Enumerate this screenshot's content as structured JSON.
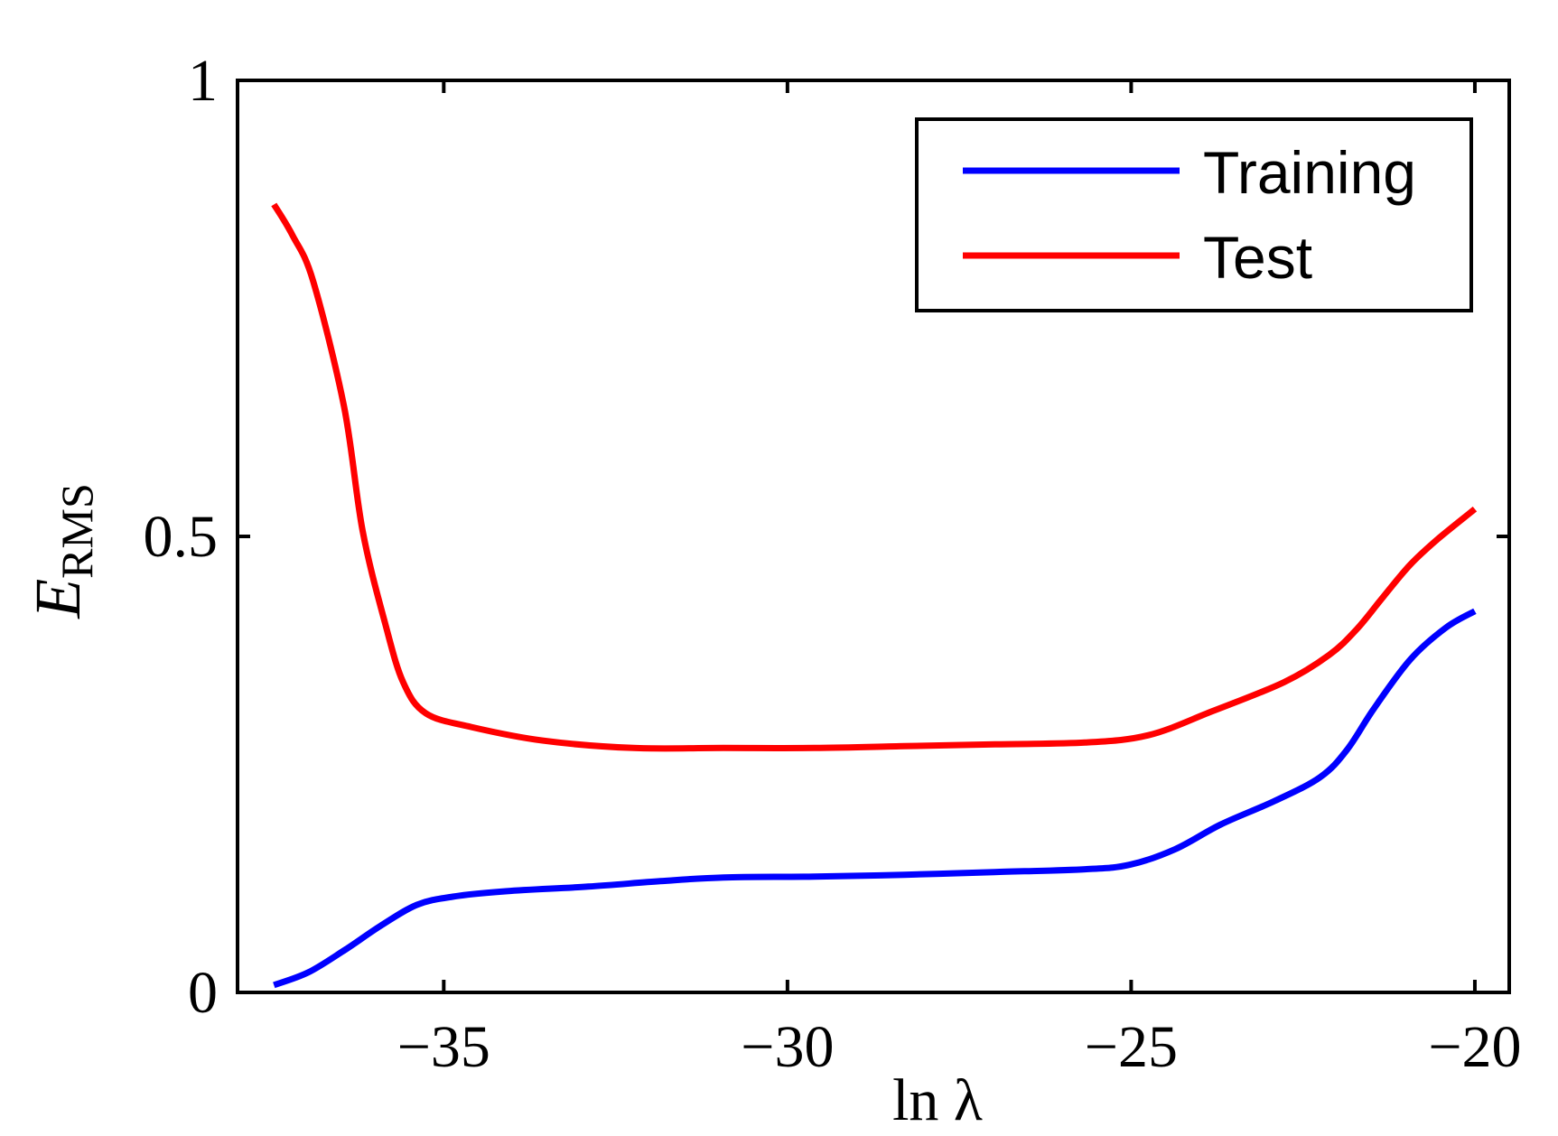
{
  "chart_data": {
    "type": "line",
    "title": "",
    "xlabel": "ln λ",
    "ylabel": "E_RMS",
    "ylabel_main": "E",
    "ylabel_sub": "RMS",
    "xlim": [
      -38,
      -19.5
    ],
    "ylim": [
      0,
      1
    ],
    "xticks": [
      -35,
      -30,
      -25,
      -20
    ],
    "xtick_labels": [
      "−35",
      "−30",
      "−25",
      "−20"
    ],
    "yticks": [
      0,
      0.5,
      1
    ],
    "ytick_labels": [
      "0",
      "0.5",
      "1"
    ],
    "grid": false,
    "legend_position": "upper right",
    "series": [
      {
        "name": "Training",
        "color": "#0000ff",
        "x": [
          -37.47,
          -36.97,
          -36.45,
          -35.92,
          -35.39,
          -34.87,
          -34.08,
          -32.9,
          -31.85,
          -30.93,
          -29.61,
          -28.3,
          -26.99,
          -25.67,
          -25.02,
          -24.36,
          -23.7,
          -22.91,
          -22.25,
          -21.86,
          -21.47,
          -20.94,
          -20.42,
          -20.0
        ],
        "y": [
          0.008,
          0.022,
          0.046,
          0.073,
          0.096,
          0.105,
          0.111,
          0.116,
          0.122,
          0.126,
          0.127,
          0.129,
          0.132,
          0.135,
          0.14,
          0.157,
          0.184,
          0.21,
          0.236,
          0.266,
          0.311,
          0.365,
          0.4,
          0.418
        ]
      },
      {
        "name": "Test",
        "color": "#ff0000",
        "x": [
          -37.47,
          -37.2,
          -36.9,
          -36.45,
          -36.18,
          -35.85,
          -35.59,
          -35.26,
          -34.6,
          -33.55,
          -32.24,
          -30.93,
          -29.61,
          -28.3,
          -26.98,
          -25.67,
          -24.75,
          -23.83,
          -22.78,
          -22.12,
          -21.72,
          -21.33,
          -20.94,
          -20.54,
          -20.0
        ],
        "y": [
          0.864,
          0.83,
          0.78,
          0.642,
          0.506,
          0.404,
          0.34,
          0.306,
          0.291,
          0.276,
          0.268,
          0.268,
          0.268,
          0.27,
          0.272,
          0.274,
          0.282,
          0.308,
          0.34,
          0.37,
          0.398,
          0.434,
          0.469,
          0.497,
          0.53
        ]
      }
    ]
  }
}
